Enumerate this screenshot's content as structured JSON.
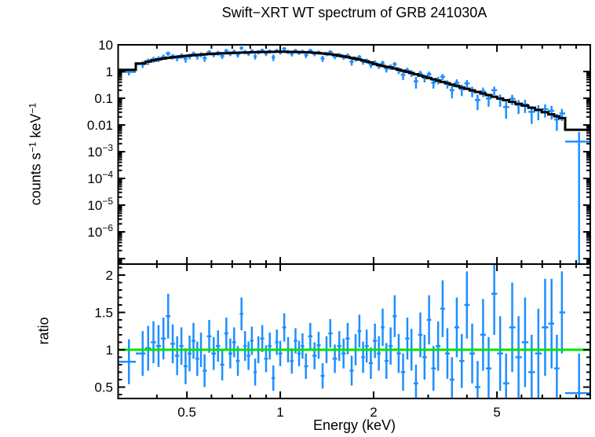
{
  "chart_data": {
    "type": "scatter",
    "title": "Swift−XRT WT spectrum of GRB 241030A",
    "xlabel": "Energy (keV)",
    "ylabel_top_parts": [
      {
        "t": "counts s"
      },
      {
        "t": "−1",
        "sup": true
      },
      {
        "t": " keV"
      },
      {
        "t": "−1",
        "sup": true
      }
    ],
    "ylabel_bottom": "ratio",
    "x_scale": "log",
    "x_range": [
      0.3,
      10
    ],
    "y1_scale": "log",
    "y1_range": [
      6.2e-08,
      10
    ],
    "y2_scale": "linear",
    "y2_range": [
      0.347,
      2.147
    ],
    "grid": false,
    "legend": "none",
    "x_major_ticks": [
      0.5,
      1,
      2,
      5
    ],
    "x_minor_ticks": [
      0.4,
      0.6,
      0.7,
      0.8,
      0.9,
      3,
      4,
      6,
      7,
      8,
      9
    ],
    "x_labels": [
      {
        "v": 0.5,
        "t": "0.5"
      },
      {
        "v": 1,
        "t": "1"
      },
      {
        "v": 2,
        "t": "2"
      },
      {
        "v": 5,
        "t": "5"
      }
    ],
    "y1_labels": [
      {
        "v": 10,
        "t": "10"
      },
      {
        "v": 1,
        "t": "1"
      },
      {
        "v": 0.1,
        "t": "0.1"
      },
      {
        "v": 0.01,
        "t": "0.01"
      },
      {
        "v": 0.001,
        "t": "10",
        "e": "−3"
      },
      {
        "v": 0.0001,
        "t": "10",
        "e": "−4"
      },
      {
        "v": 1e-05,
        "t": "10",
        "e": "−5"
      },
      {
        "v": 1e-06,
        "t": "10",
        "e": "−6"
      }
    ],
    "y2_major_ticks": [
      0.5,
      1,
      1.5,
      2
    ],
    "y2_labels": [
      {
        "v": 2,
        "t": "2"
      },
      {
        "v": 1.5,
        "t": "1.5"
      },
      {
        "v": 1,
        "t": "1"
      },
      {
        "v": 0.5,
        "t": "0.5"
      }
    ],
    "unity_ratio": 1,
    "last_bin": [
      8.3,
      10
    ],
    "colors": {
      "data": "#1E8FFF",
      "model": "#000000",
      "unity_line": "#00E400",
      "background": "#FFFFFF",
      "text": "#000000"
    },
    "columns": [
      "energy_keV",
      "model_counts",
      "data_counts",
      "data_lo",
      "data_hi",
      "ratio",
      "ratio_lo",
      "ratio_hi"
    ],
    "points": [
      [
        0.325,
        1.15,
        0.97,
        0.72,
        1.22,
        0.84,
        0.54,
        1.14
      ],
      [
        0.36,
        2.0,
        1.9,
        1.35,
        2.45,
        0.95,
        0.65,
        1.25
      ],
      [
        0.375,
        2.35,
        2.4,
        1.75,
        3.05,
        1.02,
        0.72,
        1.32
      ],
      [
        0.39,
        2.6,
        2.86,
        2.16,
        3.56,
        1.1,
        0.82,
        1.38
      ],
      [
        0.405,
        2.85,
        2.99,
        2.24,
        3.74,
        1.05,
        0.77,
        1.33
      ],
      [
        0.42,
        3.05,
        3.51,
        2.71,
        4.31,
        1.15,
        0.87,
        1.43
      ],
      [
        0.435,
        3.25,
        4.71,
        3.81,
        5.61,
        1.45,
        1.15,
        1.75
      ],
      [
        0.45,
        3.4,
        3.67,
        2.82,
        4.52,
        1.08,
        0.82,
        1.34
      ],
      [
        0.465,
        3.55,
        3.27,
        2.42,
        4.12,
        0.92,
        0.66,
        1.18
      ],
      [
        0.48,
        3.7,
        3.89,
        2.99,
        4.79,
        1.05,
        0.8,
        1.3
      ],
      [
        0.495,
        3.85,
        3.0,
        2.15,
        3.85,
        0.78,
        0.54,
        1.02
      ],
      [
        0.51,
        3.95,
        3.75,
        2.85,
        4.65,
        0.95,
        0.71,
        1.19
      ],
      [
        0.525,
        4.1,
        4.59,
        3.64,
        5.54,
        1.12,
        0.88,
        1.36
      ],
      [
        0.54,
        4.2,
        3.7,
        2.8,
        4.6,
        0.88,
        0.65,
        1.11
      ],
      [
        0.555,
        4.3,
        4.3,
        3.35,
        5.25,
        1.0,
        0.77,
        1.23
      ],
      [
        0.57,
        4.4,
        3.17,
        2.32,
        4.02,
        0.72,
        0.5,
        0.94
      ],
      [
        0.59,
        4.5,
        5.31,
        4.31,
        6.31,
        1.18,
        0.96,
        1.4
      ],
      [
        0.61,
        4.6,
        4.37,
        3.42,
        5.32,
        0.95,
        0.73,
        1.17
      ],
      [
        0.63,
        4.7,
        4.94,
        3.94,
        5.94,
        1.05,
        0.84,
        1.26
      ],
      [
        0.65,
        4.8,
        3.84,
        2.94,
        4.74,
        0.8,
        0.59,
        1.01
      ],
      [
        0.67,
        4.85,
        5.92,
        4.87,
        6.97,
        1.22,
        1.01,
        1.43
      ],
      [
        0.69,
        4.95,
        4.7,
        3.75,
        5.65,
        0.95,
        0.75,
        1.15
      ],
      [
        0.71,
        5.0,
        5.5,
        4.5,
        6.5,
        1.1,
        0.9,
        1.3
      ],
      [
        0.73,
        5.05,
        4.29,
        3.34,
        5.24,
        0.85,
        0.65,
        1.05
      ],
      [
        0.75,
        5.1,
        7.55,
        6.35,
        8.75,
        1.48,
        1.26,
        1.7
      ],
      [
        0.77,
        5.15,
        5.41,
        4.41,
        6.41,
        1.05,
        0.85,
        1.25
      ],
      [
        0.79,
        5.2,
        4.78,
        3.83,
        5.73,
        0.92,
        0.73,
        1.11
      ],
      [
        0.81,
        5.25,
        5.88,
        4.88,
        6.88,
        1.12,
        0.93,
        1.31
      ],
      [
        0.83,
        5.3,
        3.71,
        2.81,
        4.61,
        0.7,
        0.52,
        0.88
      ],
      [
        0.85,
        5.35,
        5.35,
        4.4,
        6.3,
        1.0,
        0.82,
        1.18
      ],
      [
        0.875,
        5.4,
        6.21,
        5.21,
        7.21,
        1.15,
        0.97,
        1.33
      ],
      [
        0.9,
        5.4,
        4.75,
        3.8,
        5.7,
        0.88,
        0.7,
        1.06
      ],
      [
        0.925,
        5.45,
        5.72,
        4.77,
        6.67,
        1.05,
        0.87,
        1.23
      ],
      [
        0.95,
        5.45,
        3.38,
        2.48,
        4.28,
        0.62,
        0.45,
        0.79
      ],
      [
        0.975,
        5.5,
        6.05,
        5.1,
        7.0,
        1.1,
        0.93,
        1.27
      ],
      [
        1.0,
        5.5,
        5.23,
        4.28,
        6.18,
        0.95,
        0.78,
        1.12
      ],
      [
        1.03,
        5.5,
        7.15,
        6.05,
        8.25,
        1.3,
        1.11,
        1.49
      ],
      [
        1.06,
        5.45,
        5.45,
        4.5,
        6.4,
        1.0,
        0.83,
        1.17
      ],
      [
        1.09,
        5.45,
        4.63,
        3.68,
        5.58,
        0.85,
        0.68,
        1.02
      ],
      [
        1.12,
        5.4,
        6.05,
        5.1,
        7.0,
        1.12,
        0.95,
        1.29
      ],
      [
        1.15,
        5.35,
        5.08,
        4.18,
        5.98,
        0.95,
        0.78,
        1.12
      ],
      [
        1.18,
        5.3,
        5.57,
        4.62,
        6.52,
        1.05,
        0.88,
        1.22
      ],
      [
        1.21,
        5.25,
        4.1,
        3.2,
        5.0,
        0.78,
        0.61,
        0.95
      ],
      [
        1.25,
        5.15,
        6.08,
        5.13,
        7.03,
        1.18,
        1.0,
        1.36
      ],
      [
        1.29,
        5.05,
        4.65,
        3.75,
        5.55,
        0.92,
        0.74,
        1.1
      ],
      [
        1.33,
        4.9,
        5.19,
        4.29,
        6.09,
        1.06,
        0.88,
        1.24
      ],
      [
        1.37,
        4.75,
        3.09,
        2.29,
        3.89,
        0.65,
        0.48,
        0.82
      ],
      [
        1.41,
        4.6,
        4.6,
        3.75,
        5.45,
        1.0,
        0.82,
        1.18
      ],
      [
        1.45,
        4.45,
        5.43,
        4.58,
        6.28,
        1.22,
        1.03,
        1.41
      ],
      [
        1.5,
        4.2,
        3.7,
        2.9,
        4.5,
        0.88,
        0.69,
        1.07
      ],
      [
        1.55,
        3.95,
        4.15,
        3.35,
        4.95,
        1.05,
        0.85,
        1.25
      ],
      [
        1.6,
        3.7,
        3.52,
        2.77,
        4.27,
        0.95,
        0.75,
        1.15
      ],
      [
        1.65,
        3.45,
        3.97,
        3.22,
        4.72,
        1.15,
        0.94,
        1.36
      ],
      [
        1.7,
        3.2,
        2.3,
        1.65,
        2.95,
        0.72,
        0.52,
        0.92
      ],
      [
        1.75,
        3.0,
        3.0,
        2.37,
        3.63,
        1.0,
        0.79,
        1.21
      ],
      [
        1.8,
        2.8,
        3.5,
        2.88,
        4.12,
        1.25,
        1.03,
        1.47
      ],
      [
        1.85,
        2.6,
        2.34,
        1.79,
        2.89,
        0.9,
        0.69,
        1.11
      ],
      [
        1.9,
        2.4,
        2.52,
        1.99,
        3.05,
        1.05,
        0.83,
        1.27
      ],
      [
        1.96,
        2.2,
        1.8,
        1.34,
        2.26,
        0.82,
        0.61,
        1.03
      ],
      [
        2.02,
        1.9,
        2.13,
        1.69,
        2.57,
        1.12,
        0.89,
        1.35
      ],
      [
        2.08,
        1.75,
        1.66,
        1.26,
        2.06,
        0.95,
        0.72,
        1.18
      ],
      [
        2.14,
        1.62,
        2.11,
        1.7,
        2.52,
        1.3,
        1.05,
        1.55
      ],
      [
        2.2,
        1.5,
        1.28,
        0.92,
        1.64,
        0.85,
        0.61,
        1.09
      ],
      [
        2.27,
        1.42,
        1.49,
        1.14,
        1.84,
        1.05,
        0.8,
        1.3
      ],
      [
        2.34,
        1.3,
        1.89,
        1.52,
        2.26,
        1.45,
        1.17,
        1.73
      ],
      [
        2.41,
        1.18,
        1.12,
        0.81,
        1.43,
        0.95,
        0.69,
        1.21
      ],
      [
        2.49,
        1.07,
        0.75,
        0.48,
        1.02,
        0.7,
        0.45,
        0.95
      ],
      [
        2.57,
        0.97,
        1.12,
        0.85,
        1.39,
        1.15,
        0.87,
        1.43
      ],
      [
        2.65,
        0.88,
        0.88,
        0.63,
        1.13,
        1.0,
        0.72,
        1.28
      ],
      [
        2.74,
        0.79,
        0.43,
        0.23,
        0.63,
        0.55,
        0.3,
        0.8
      ],
      [
        2.83,
        0.71,
        0.85,
        0.64,
        1.06,
        1.2,
        0.9,
        1.5
      ],
      [
        2.92,
        0.64,
        0.58,
        0.39,
        0.77,
        0.9,
        0.6,
        1.2
      ],
      [
        3.02,
        0.57,
        0.8,
        0.61,
        0.99,
        1.4,
        1.07,
        1.73
      ],
      [
        3.12,
        0.51,
        0.38,
        0.23,
        0.53,
        0.75,
        0.45,
        1.05
      ],
      [
        3.23,
        0.455,
        0.48,
        0.33,
        0.63,
        1.05,
        0.72,
        1.38
      ],
      [
        3.34,
        0.41,
        0.64,
        0.48,
        0.8,
        1.55,
        1.17,
        1.93
      ],
      [
        3.46,
        0.365,
        0.35,
        0.23,
        0.47,
        0.95,
        0.61,
        1.29
      ],
      [
        3.58,
        0.325,
        0.2,
        0.1,
        0.3,
        0.6,
        0.3,
        0.9
      ],
      [
        3.71,
        0.29,
        0.38,
        0.25,
        0.51,
        1.3,
        0.9,
        1.7
      ],
      [
        3.85,
        0.255,
        0.22,
        0.12,
        0.32,
        0.85,
        0.49,
        1.21
      ],
      [
        4.0,
        0.225,
        0.36,
        0.24,
        0.48,
        1.6,
        1.15,
        2.05
      ],
      [
        4.16,
        0.197,
        0.19,
        0.11,
        0.27,
        0.95,
        0.55,
        1.35
      ],
      [
        4.33,
        0.172,
        0.086,
        0.036,
        0.136,
        0.5,
        0.15,
        0.85
      ],
      [
        4.51,
        0.15,
        0.18,
        0.11,
        0.25,
        1.2,
        0.72,
        1.68
      ],
      [
        4.7,
        0.131,
        0.098,
        0.048,
        0.148,
        0.75,
        0.33,
        1.17
      ],
      [
        4.9,
        0.114,
        0.2,
        0.13,
        0.27,
        1.75,
        1.2,
        2.3
      ],
      [
        5.12,
        0.098,
        0.093,
        0.048,
        0.138,
        0.95,
        0.45,
        1.45
      ],
      [
        5.35,
        0.085,
        0.047,
        0.017,
        0.077,
        0.55,
        0.15,
        0.95
      ],
      [
        5.6,
        0.073,
        0.095,
        0.055,
        0.135,
        1.3,
        0.7,
        1.9
      ],
      [
        5.87,
        0.062,
        0.056,
        0.026,
        0.086,
        0.9,
        0.35,
        1.45
      ],
      [
        6.16,
        0.053,
        0.058,
        0.028,
        0.088,
        1.1,
        0.5,
        1.7
      ],
      [
        6.47,
        0.044,
        0.031,
        0.011,
        0.051,
        0.7,
        0.2,
        1.2
      ],
      [
        6.8,
        0.037,
        0.035,
        0.015,
        0.055,
        0.95,
        0.35,
        1.55
      ],
      [
        7.15,
        0.03,
        0.039,
        0.019,
        0.059,
        1.3,
        0.65,
        1.95
      ],
      [
        7.5,
        0.025,
        0.034,
        0.016,
        0.052,
        1.35,
        0.75,
        1.95
      ],
      [
        7.8,
        0.021,
        0.016,
        0.006,
        0.026,
        0.75,
        0.3,
        1.2
      ],
      [
        8.1,
        0.018,
        0.027,
        0.014,
        0.04,
        1.5,
        0.95,
        2.05
      ],
      [
        9.2,
        0.0066,
        0.0024,
        1e-09,
        0.0055,
        0.42,
        0.3,
        0.95
      ]
    ]
  }
}
